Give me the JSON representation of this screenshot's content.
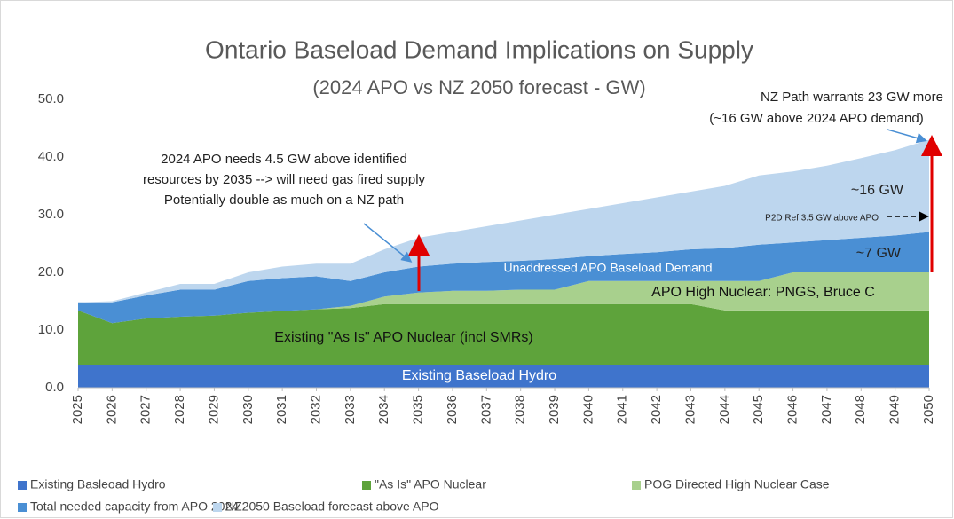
{
  "chart_data": {
    "type": "stacked_area",
    "title": "Ontario Baseload Demand Implications on Supply",
    "subtitle": "(2024 APO vs NZ 2050 forecast - GW)",
    "categories": [
      "2025",
      "2026",
      "2027",
      "2028",
      "2029",
      "2030",
      "2031",
      "2032",
      "2033",
      "2034",
      "2035",
      "2036",
      "2037",
      "2038",
      "2039",
      "2040",
      "2041",
      "2042",
      "2043",
      "2044",
      "2045",
      "2046",
      "2047",
      "2048",
      "2049",
      "2050"
    ],
    "series": [
      {
        "name": "Existing Basleoad Hydro",
        "color": "#3f74cc",
        "values": [
          4,
          4,
          4,
          4,
          4,
          4,
          4,
          4,
          4,
          4,
          4,
          4,
          4,
          4,
          4,
          4,
          4,
          4,
          4,
          4,
          4,
          4,
          4,
          4,
          4,
          4
        ]
      },
      {
        "name": "\"As Is\" APO Nuclear",
        "color": "#5ea33b",
        "values": [
          9.4,
          7.2,
          8,
          8.3,
          8.5,
          9,
          9.3,
          9.6,
          9.8,
          10.5,
          10.5,
          10.5,
          10.5,
          10.5,
          10.5,
          10.5,
          10.5,
          10.5,
          10.5,
          9.4,
          9.4,
          9.4,
          9.4,
          9.4,
          9.4,
          9.4
        ]
      },
      {
        "name": "POG Directed High Nuclear Case",
        "color": "#a8d08d",
        "values": [
          0,
          0,
          0,
          0,
          0,
          0,
          0,
          0,
          0.4,
          1.3,
          2,
          2.3,
          2.3,
          2.5,
          2.5,
          4,
          4,
          4,
          4,
          5.1,
          5.1,
          6.6,
          6.6,
          6.6,
          6.6,
          6.6
        ]
      },
      {
        "name": "Total needed capacity from APO 2024",
        "color": "#4a8fd4",
        "values": [
          1.4,
          3.6,
          4,
          4.7,
          4.5,
          5.5,
          5.7,
          5.7,
          4.3,
          4.2,
          4.5,
          4.7,
          5,
          5,
          5.3,
          4.3,
          4.7,
          5,
          5.5,
          5.7,
          6.3,
          5.2,
          5.6,
          6,
          6.4,
          7
        ]
      },
      {
        "name": "NZ2050 Baseload forecast above APO",
        "color": "#bdd6ee",
        "values": [
          0,
          0.2,
          0.5,
          1,
          1,
          1.5,
          2,
          2.2,
          3,
          4,
          5,
          5.5,
          6.2,
          7,
          7.7,
          8.2,
          8.8,
          9.5,
          10,
          10.8,
          12,
          12.3,
          12.9,
          13.8,
          14.8,
          16
        ]
      }
    ],
    "ylim": [
      0,
      50
    ],
    "yticks": [
      {
        "value": 0,
        "label": "0.0"
      },
      {
        "value": 10,
        "label": "10.0"
      },
      {
        "value": 20,
        "label": "20.0"
      },
      {
        "value": 30,
        "label": "30.0"
      },
      {
        "value": 40,
        "label": "40.0"
      },
      {
        "value": 50,
        "label": "50.0"
      }
    ],
    "annotations": [
      "2024 APO needs 4.5 GW above identified",
      "resources by 2035 --> will need gas fired supply",
      "Potentially double as much on a NZ path",
      "NZ Path warrants 23 GW more",
      "(~16 GW above 2024 APO demand)",
      "~16 GW",
      "P2D Ref 3.5 GW above APO",
      "~7 GW",
      "Unaddressed APO Baseload Demand",
      "APO High Nuclear: PNGS, Bruce C",
      "Existing \"As Is\" APO Nuclear (incl SMRs)",
      "Existing Baseload Hydro"
    ]
  }
}
